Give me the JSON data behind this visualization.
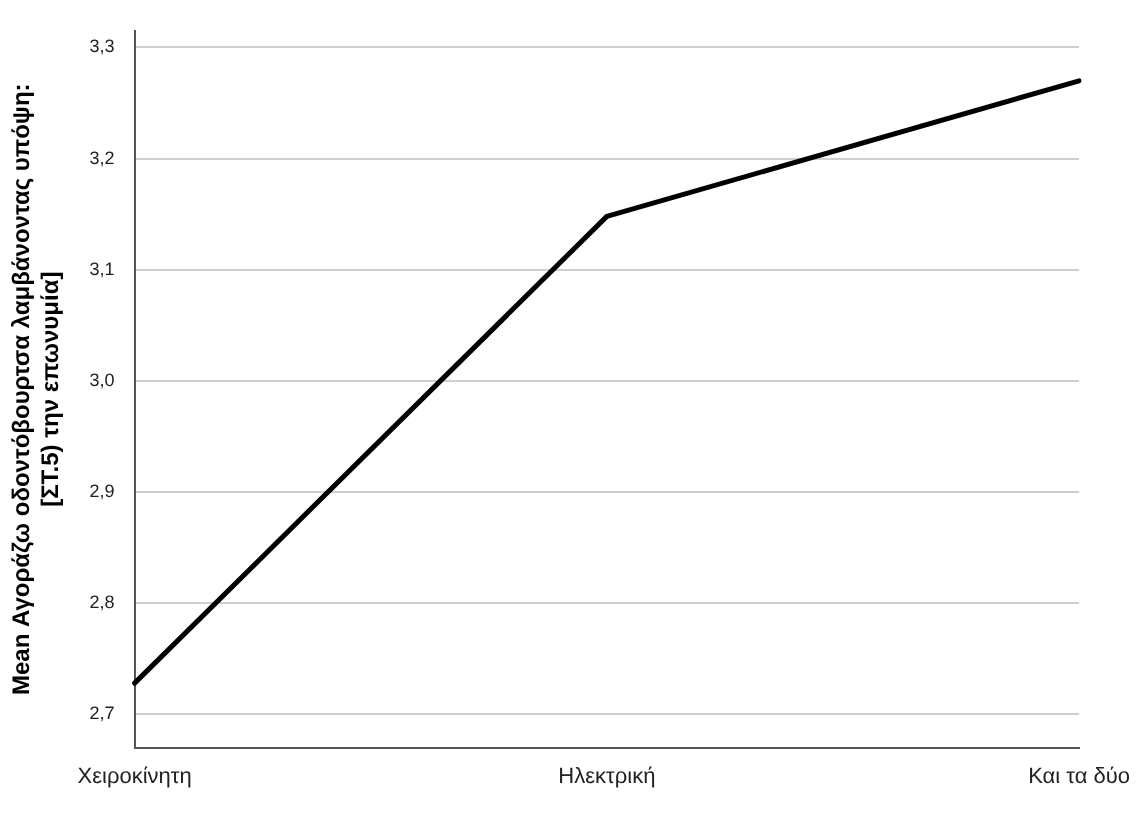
{
  "chart_data": {
    "type": "line",
    "ylabel": "Mean Αγοράζω οδοντόβουρτσα λαμβάνοντας υπόψη:\n[ΣΤ.5) την επωνυμία]",
    "categories": [
      "Χειροκίνητη",
      "Ηλεκτρική",
      "Και τα δύο"
    ],
    "series": [
      {
        "color": "#000000",
        "values": [
          2.728,
          3.148,
          3.27
        ]
      }
    ],
    "ylim": [
      2.67,
      3.315
    ],
    "yticks": [
      {
        "value": 2.7,
        "label": "2,7"
      },
      {
        "value": 2.8,
        "label": "2,8"
      },
      {
        "value": 2.9,
        "label": "2,9"
      },
      {
        "value": 3.0,
        "label": "3,0"
      },
      {
        "value": 3.1,
        "label": "3,1"
      },
      {
        "value": 3.2,
        "label": "3,2"
      },
      {
        "value": 3.3,
        "label": "3,3"
      }
    ],
    "grid": "y",
    "marker": "none",
    "line_style": "solid",
    "legend": false
  }
}
